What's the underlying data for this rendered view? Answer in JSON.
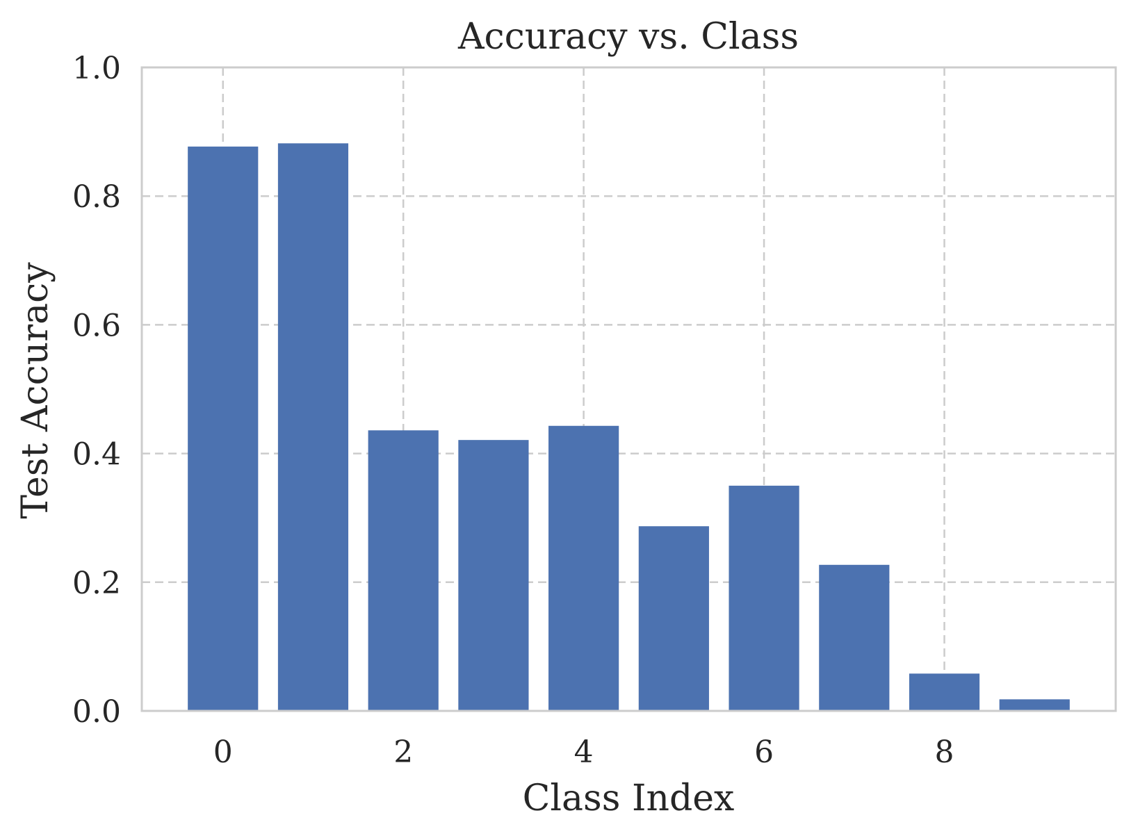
{
  "chart_data": {
    "type": "bar",
    "title": "Accuracy vs. Class",
    "xlabel": "Class Index",
    "ylabel": "Test Accuracy",
    "categories": [
      0,
      1,
      2,
      3,
      4,
      5,
      6,
      7,
      8,
      9
    ],
    "values": [
      0.877,
      0.882,
      0.436,
      0.421,
      0.443,
      0.287,
      0.35,
      0.227,
      0.058,
      0.018
    ],
    "bar_color": "#4c72b0",
    "xlim": [
      -0.9,
      9.9
    ],
    "ylim": [
      0.0,
      1.0
    ],
    "xticks": [
      0,
      2,
      4,
      6,
      8
    ],
    "xtick_labels": [
      "0",
      "2",
      "4",
      "6",
      "8"
    ],
    "yticks": [
      0.0,
      0.2,
      0.4,
      0.6,
      0.8,
      1.0
    ],
    "ytick_labels": [
      "0.0",
      "0.2",
      "0.4",
      "0.6",
      "0.8",
      "1.0"
    ],
    "grid": true,
    "grid_style": "dashed",
    "bar_width": 0.78
  }
}
